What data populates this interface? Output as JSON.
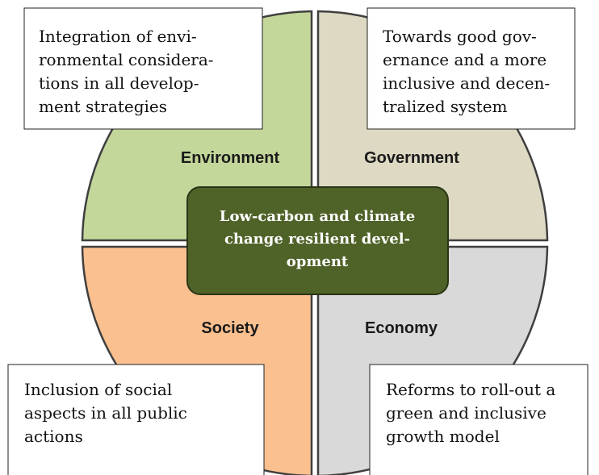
{
  "center": {
    "lines": [
      "Low-carbon and climate",
      "change resilient devel-",
      "opment"
    ]
  },
  "quadrants": [
    {
      "label": "Environment",
      "text": [
        "Integration of envi-",
        "ronmental considera-",
        "tions in all develop-",
        "ment strategies"
      ]
    },
    {
      "label": "Government",
      "text": [
        "Towards good gov-",
        "ernance and a more",
        "inclusive and decen-",
        "tralized system"
      ]
    },
    {
      "label": "Society",
      "text": [
        "Inclusion of social",
        "aspects in all public",
        "actions"
      ]
    },
    {
      "label": "Economy",
      "text": [
        "Reforms to roll-out a",
        "green and inclusive",
        "growth model"
      ]
    }
  ]
}
